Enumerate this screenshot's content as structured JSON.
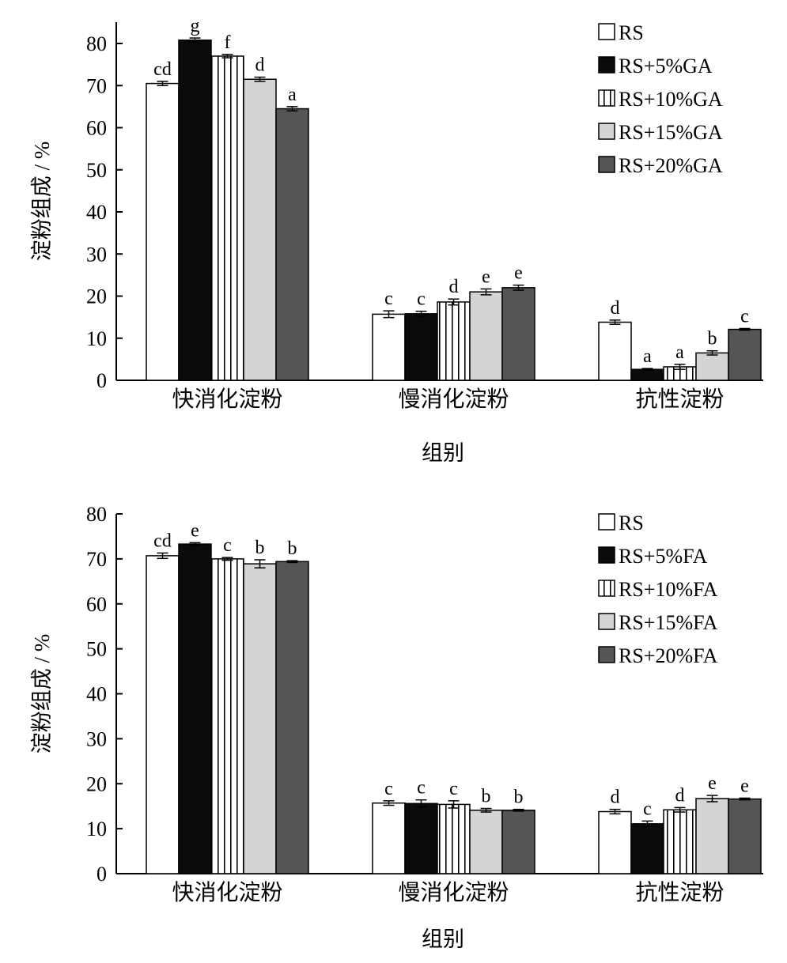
{
  "chart_data": [
    {
      "type": "bar",
      "title": "",
      "xlabel": "组别",
      "ylabel": "淀粉组成 / %",
      "ylim": [
        0,
        85
      ],
      "yticks": [
        0,
        10,
        20,
        30,
        40,
        50,
        60,
        70,
        80
      ],
      "grid": false,
      "legend_position": "top-right",
      "categories": [
        "快消化淀粉",
        "慢消化淀粉",
        "抗性淀粉"
      ],
      "series": [
        {
          "name": "RS",
          "pattern": "white",
          "values": [
            70.5,
            15.7,
            13.8
          ],
          "errors": [
            0.5,
            0.8,
            0.5
          ],
          "labels": [
            "cd",
            "c",
            "d"
          ]
        },
        {
          "name": "RS+5%GA",
          "pattern": "black",
          "values": [
            80.8,
            15.8,
            2.6
          ],
          "errors": [
            0.5,
            0.6,
            0.2
          ],
          "labels": [
            "g",
            "c",
            "a"
          ]
        },
        {
          "name": "RS+10%GA",
          "pattern": "vstripe",
          "values": [
            77.0,
            18.6,
            3.2
          ],
          "errors": [
            0.4,
            0.7,
            0.6
          ],
          "labels": [
            "f",
            "d",
            "a"
          ]
        },
        {
          "name": "RS+15%GA",
          "pattern": "light",
          "values": [
            71.5,
            21.0,
            6.5
          ],
          "errors": [
            0.5,
            0.7,
            0.5
          ],
          "labels": [
            "d",
            "e",
            "b"
          ]
        },
        {
          "name": "RS+20%GA",
          "pattern": "dark",
          "values": [
            64.5,
            22.0,
            12.1
          ],
          "errors": [
            0.5,
            0.6,
            0.2
          ],
          "labels": [
            "a",
            "e",
            "c"
          ]
        }
      ]
    },
    {
      "type": "bar",
      "title": "",
      "xlabel": "组别",
      "ylabel": "淀粉组成 / %",
      "ylim": [
        0,
        80
      ],
      "yticks": [
        0,
        10,
        20,
        30,
        40,
        50,
        60,
        70,
        80
      ],
      "grid": false,
      "legend_position": "top-right",
      "categories": [
        "快消化淀粉",
        "慢消化淀粉",
        "抗性淀粉"
      ],
      "series": [
        {
          "name": "RS",
          "pattern": "white",
          "values": [
            70.7,
            15.7,
            13.8
          ],
          "errors": [
            0.6,
            0.5,
            0.5
          ],
          "labels": [
            "cd",
            "c",
            "d"
          ]
        },
        {
          "name": "RS+5%FA",
          "pattern": "black",
          "values": [
            73.3,
            15.6,
            11.1
          ],
          "errors": [
            0.3,
            0.8,
            0.6
          ],
          "labels": [
            "e",
            "c",
            "c"
          ]
        },
        {
          "name": "RS+10%FA",
          "pattern": "vstripe",
          "values": [
            70.0,
            15.4,
            14.2
          ],
          "errors": [
            0.3,
            0.8,
            0.5
          ],
          "labels": [
            "c",
            "c",
            "d"
          ]
        },
        {
          "name": "RS+15%FA",
          "pattern": "light",
          "values": [
            68.9,
            14.1,
            16.7
          ],
          "errors": [
            0.9,
            0.4,
            0.7
          ],
          "labels": [
            "b",
            "b",
            "e"
          ]
        },
        {
          "name": "RS+20%FA",
          "pattern": "dark",
          "values": [
            69.4,
            14.1,
            16.6
          ],
          "errors": [
            0.2,
            0.2,
            0.2
          ],
          "labels": [
            "b",
            "b",
            "e"
          ]
        }
      ]
    }
  ],
  "colors": {
    "white": "#ffffff",
    "black": "#0b0b0b",
    "light": "#d4d4d4",
    "dark": "#545556",
    "axis": "#000000"
  }
}
